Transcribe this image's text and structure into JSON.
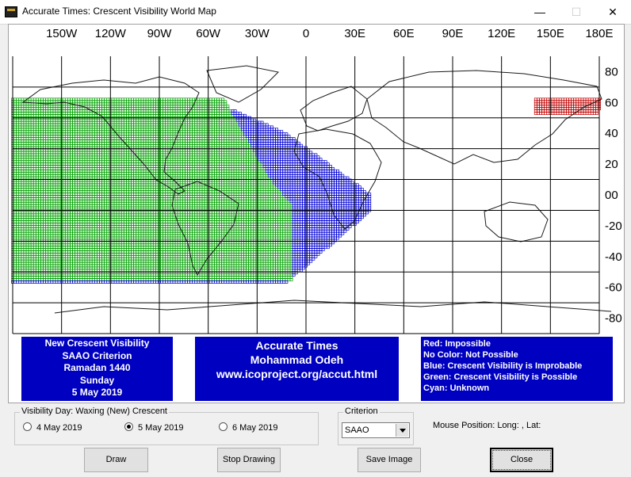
{
  "window": {
    "title": "Accurate Times: Crescent Visibility World Map",
    "controls": {
      "minimize": "—",
      "maximize": "☐",
      "close": "✕"
    }
  },
  "map": {
    "lon_labels": [
      "150W",
      "120W",
      "90W",
      "60W",
      "30W",
      "0",
      "30E",
      "60E",
      "90E",
      "120E",
      "150E",
      "180E"
    ],
    "lat_labels": [
      "80",
      "60",
      "40",
      "20",
      "00",
      "-20",
      "-40",
      "-60",
      "-80"
    ],
    "colors": {
      "impossible": "#c00000",
      "improbable": "#0000d0",
      "possible": "#00a000",
      "grid": "#000000"
    }
  },
  "info_left": {
    "lines": [
      "New Crescent Visibility",
      "SAAO Criterion",
      "Ramadan 1440",
      "Sunday",
      "5 May 2019"
    ]
  },
  "info_mid": {
    "lines": [
      "Accurate Times",
      "Mohammad Odeh",
      "www.icoproject.org/accut.html"
    ]
  },
  "info_right": {
    "lines": [
      "Red: Impossible",
      "No Color: Not Possible",
      "Blue: Crescent Visibility is Improbable",
      "Green: Crescent Visibility is Possible",
      "Cyan: Unknown"
    ]
  },
  "visibility_day": {
    "legend": "Visibility Day: Waxing (New) Crescent",
    "options": [
      "4 May 2019",
      "5 May 2019",
      "6 May 2019"
    ],
    "selected_index": 1
  },
  "criterion": {
    "legend": "Criterion",
    "value": "SAAO"
  },
  "mouse_position": "Mouse Position: Long: , Lat:",
  "buttons": {
    "draw": "Draw",
    "stop": "Stop Drawing",
    "save": "Save Image",
    "close": "Close"
  }
}
